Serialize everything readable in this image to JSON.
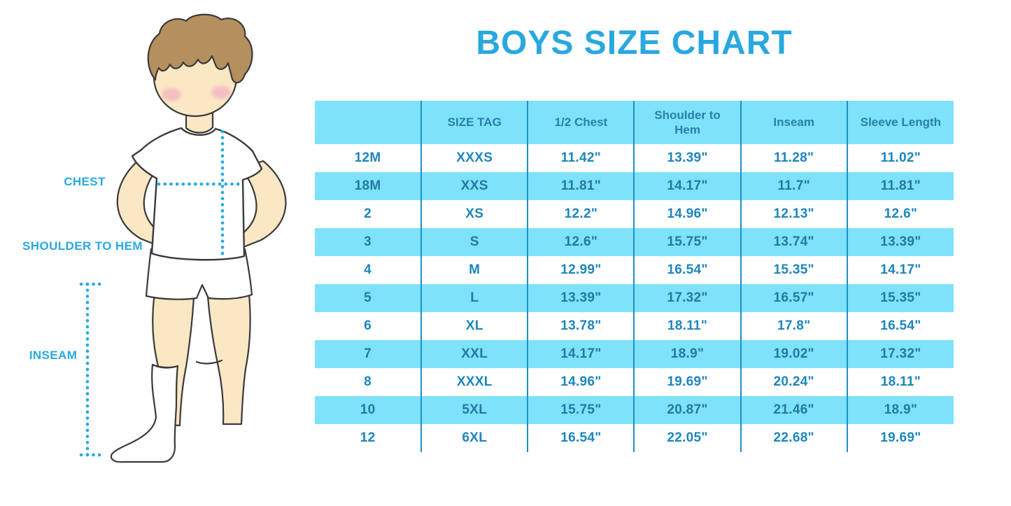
{
  "title": "BOYS SIZE CHART",
  "figure": {
    "labels": {
      "chest": "CHEST",
      "shoulder_to_hem": "SHOULDER TO HEM",
      "inseam": "INSEAM"
    }
  },
  "colors": {
    "accent": "#29A9E1",
    "title": "#29A8E0",
    "table_fill": "#7DE2FA",
    "divider": "#1E90C6",
    "header_text": "#2C7FA9",
    "cell_text": "#1D86BD",
    "cell_text_alt": "#2578A2",
    "skin": "#FAE7C4",
    "hair": "#B5905F",
    "blush": "#F2A9C2"
  },
  "chart_data": {
    "type": "table",
    "title": "BOYS SIZE CHART",
    "columns": [
      "",
      "SIZE TAG",
      "1/2 Chest",
      "Shoulder to Hem",
      "Inseam",
      "Sleeve Length"
    ],
    "rows": [
      [
        "12M",
        "XXXS",
        "11.42\"",
        "13.39\"",
        "11.28\"",
        "11.02\""
      ],
      [
        "18M",
        "XXS",
        "11.81\"",
        "14.17\"",
        "11.7\"",
        "11.81\""
      ],
      [
        "2",
        "XS",
        "12.2\"",
        "14.96\"",
        "12.13\"",
        "12.6\""
      ],
      [
        "3",
        "S",
        "12.6\"",
        "15.75\"",
        "13.74\"",
        "13.39\""
      ],
      [
        "4",
        "M",
        "12.99\"",
        "16.54\"",
        "15.35\"",
        "14.17\""
      ],
      [
        "5",
        "L",
        "13.39\"",
        "17.32\"",
        "16.57\"",
        "15.35\""
      ],
      [
        "6",
        "XL",
        "13.78\"",
        "18.11\"",
        "17.8\"",
        "16.54\""
      ],
      [
        "7",
        "XXL",
        "14.17\"",
        "18.9\"",
        "19.02\"",
        "17.32\""
      ],
      [
        "8",
        "XXXL",
        "14.96\"",
        "19.69\"",
        "20.24\"",
        "18.11\""
      ],
      [
        "10",
        "5XL",
        "15.75\"",
        "20.87\"",
        "21.46\"",
        "18.9\""
      ],
      [
        "12",
        "6XL",
        "16.54\"",
        "22.05\"",
        "22.68\"",
        "19.69\""
      ]
    ],
    "layout": {
      "alternating_row_fill": "cyan on rows 2,4,6,8,10 (1-indexed data rows)",
      "grid": "vertical column dividers only",
      "legend": "none"
    }
  }
}
